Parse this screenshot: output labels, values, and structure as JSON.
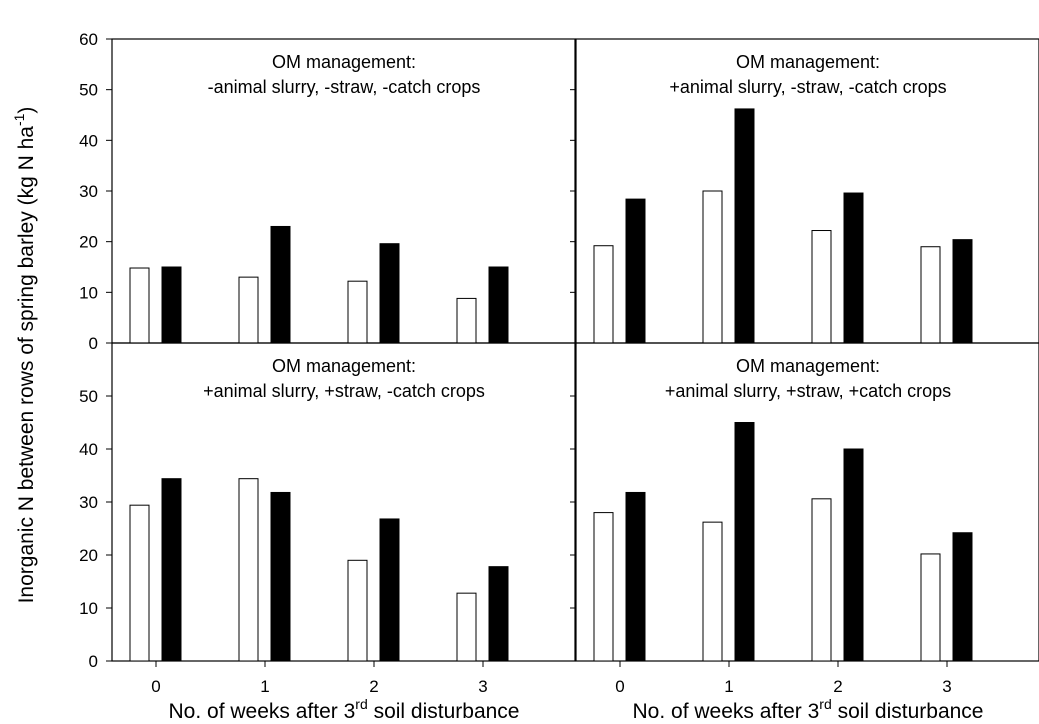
{
  "ylabel": {
    "main": "Inorganic N between rows of spring barley (kg N ha",
    "superscript": "-1",
    "close": ")"
  },
  "xlabel": {
    "prefix": "No. of weeks after 3",
    "superscript": "rd",
    "suffix": " soil disturbance"
  },
  "colors": {
    "series1": "#ffffff",
    "series2": "#000000",
    "stroke": "#000000"
  },
  "chart_data": [
    {
      "type": "bar",
      "title": [
        "OM management:",
        "-animal slurry, -straw, -catch crops"
      ],
      "categories": [
        "0",
        "1",
        "2",
        "3"
      ],
      "series": [
        {
          "values": [
            14.8,
            13.0,
            12.2,
            8.8
          ]
        },
        {
          "values": [
            15.0,
            23.0,
            19.6,
            15.0
          ]
        }
      ],
      "ylim": [
        0,
        60
      ],
      "yticks": [
        0,
        10,
        20,
        30,
        40,
        50,
        60
      ]
    },
    {
      "type": "bar",
      "title": [
        "OM management:",
        "+animal slurry, -straw, -catch crops"
      ],
      "categories": [
        "0",
        "1",
        "2",
        "3"
      ],
      "series": [
        {
          "values": [
            19.2,
            30.0,
            22.2,
            19.0
          ]
        },
        {
          "values": [
            28.4,
            46.2,
            29.6,
            20.4
          ]
        }
      ],
      "ylim": [
        0,
        60
      ],
      "yticks": [
        0,
        10,
        20,
        30,
        40,
        50,
        60
      ]
    },
    {
      "type": "bar",
      "title": [
        "OM management:",
        "+animal slurry, +straw, -catch crops"
      ],
      "categories": [
        "0",
        "1",
        "2",
        "3"
      ],
      "series": [
        {
          "values": [
            29.4,
            34.4,
            19.0,
            12.8
          ]
        },
        {
          "values": [
            34.4,
            31.8,
            26.8,
            17.8
          ]
        }
      ],
      "ylim": [
        0,
        60
      ],
      "yticks": [
        0,
        10,
        20,
        30,
        40,
        50
      ]
    },
    {
      "type": "bar",
      "title": [
        "OM management:",
        "+animal slurry, +straw, +catch crops"
      ],
      "categories": [
        "0",
        "1",
        "2",
        "3"
      ],
      "series": [
        {
          "values": [
            28.0,
            26.2,
            30.6,
            20.2
          ]
        },
        {
          "values": [
            31.8,
            45.0,
            40.0,
            24.2
          ]
        }
      ],
      "ylim": [
        0,
        60
      ],
      "yticks": [
        0,
        10,
        20,
        30,
        40,
        50
      ]
    }
  ]
}
